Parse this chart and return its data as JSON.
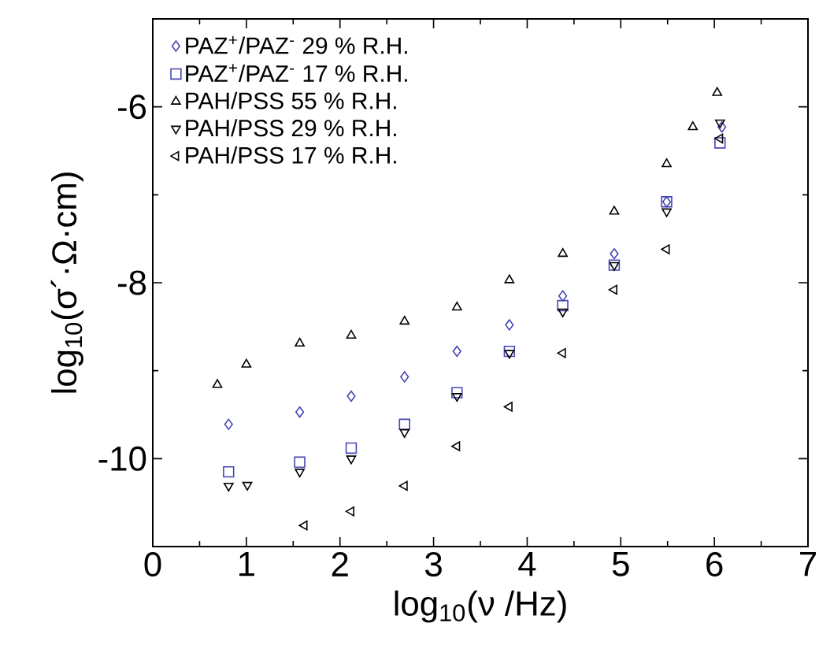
{
  "chart_data": {
    "type": "scatter",
    "xlabel": "log$_{10}$(ν /Hz)",
    "ylabel": "log$_{10}$(σ´·Ω·cm)",
    "xlim": [
      0,
      7
    ],
    "ylim": [
      -11,
      -5
    ],
    "xticks": [
      0,
      1,
      2,
      3,
      4,
      5,
      6,
      7
    ],
    "yticks": [
      -10,
      -8,
      -6
    ],
    "legend": "top left",
    "grid": false,
    "series": [
      {
        "name": "PAZ$^{+}$/PAZ$^{-}$   29 % R.H.",
        "color": "#4646b4",
        "marker": "diamond",
        "x": [
          0.81,
          1.57,
          2.12,
          2.69,
          3.25,
          3.81,
          4.38,
          4.93,
          5.49,
          6.08
        ],
        "values": [
          -9.61,
          -9.47,
          -9.29,
          -9.07,
          -8.78,
          -8.48,
          -8.15,
          -7.67,
          -7.08,
          -6.23
        ]
      },
      {
        "name": "PAZ$^{+}$/PAZ$^{-}$   17 % R.H.",
        "color": "#4646b4",
        "marker": "square",
        "x": [
          0.81,
          1.57,
          2.12,
          2.69,
          3.25,
          3.81,
          4.38,
          4.93,
          5.49,
          6.06
        ],
        "values": [
          -10.15,
          -10.04,
          -9.88,
          -9.61,
          -9.25,
          -8.78,
          -8.26,
          -7.8,
          -7.08,
          -6.41
        ]
      },
      {
        "name": "PAH/PSS   55 % R.H.",
        "color": "#000000",
        "marker": "triangle",
        "x": [
          0.69,
          1.0,
          1.57,
          2.12,
          2.69,
          3.25,
          3.81,
          4.38,
          4.93,
          5.49,
          5.77,
          6.03
        ],
        "values": [
          -9.16,
          -8.93,
          -8.69,
          -8.6,
          -8.44,
          -8.28,
          -7.97,
          -7.67,
          -7.19,
          -6.65,
          -6.23,
          -5.84
        ]
      },
      {
        "name": "PAH/PSS   29 % R.H.",
        "color": "#000000",
        "marker": "triangle-down",
        "x": [
          0.81,
          1.01,
          1.57,
          2.12,
          2.69,
          3.25,
          3.81,
          4.38,
          4.93,
          5.49,
          6.06
        ],
        "values": [
          -10.31,
          -10.3,
          -10.15,
          -10.0,
          -9.7,
          -9.29,
          -8.8,
          -8.33,
          -7.8,
          -7.19,
          -6.18
        ]
      },
      {
        "name": "PAH/PSS   17 % R.H.",
        "color": "#000000",
        "marker": "triangle-left",
        "x": [
          1.62,
          2.12,
          2.69,
          3.25,
          3.81,
          4.38,
          4.93,
          5.49,
          6.06
        ],
        "values": [
          -10.76,
          -10.6,
          -10.31,
          -9.86,
          -9.41,
          -8.8,
          -8.08,
          -7.62,
          -6.36
        ]
      }
    ]
  }
}
